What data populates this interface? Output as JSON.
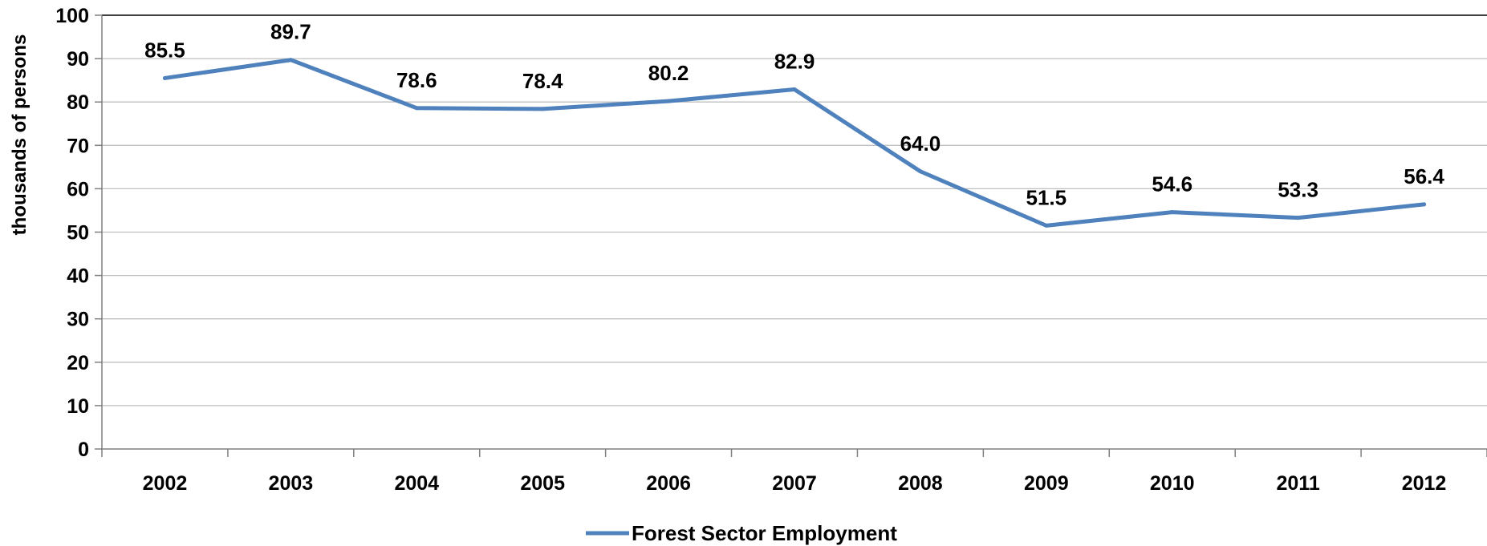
{
  "chart_data": {
    "type": "line",
    "title": "",
    "xlabel": "",
    "ylabel": "thousands of persons",
    "ylim": [
      0,
      100
    ],
    "yticks": [
      0,
      10,
      20,
      30,
      40,
      50,
      60,
      70,
      80,
      90,
      100
    ],
    "grid": true,
    "legend_position": "bottom-center",
    "categories": [
      "2002",
      "2003",
      "2004",
      "2005",
      "2006",
      "2007",
      "2008",
      "2009",
      "2010",
      "2011",
      "2012"
    ],
    "series": [
      {
        "name": "Forest Sector Employment",
        "color": "#4f81bd",
        "values": [
          85.5,
          89.7,
          78.6,
          78.4,
          80.2,
          82.9,
          64.0,
          51.5,
          54.6,
          53.3,
          56.4
        ],
        "labels": [
          "85.5",
          "89.7",
          "78.6",
          "78.4",
          "80.2",
          "82.9",
          "64.0",
          "51.5",
          "54.6",
          "53.3",
          "56.4"
        ]
      }
    ]
  }
}
